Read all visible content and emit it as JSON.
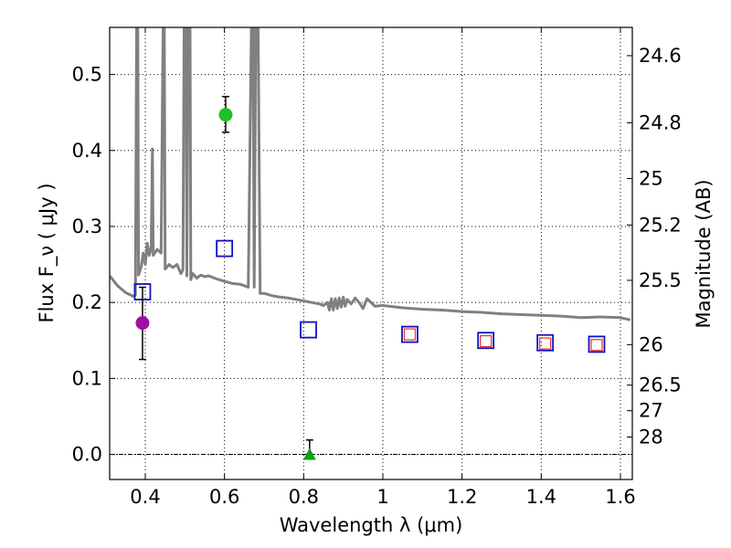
{
  "chart_data": {
    "type": "scatter",
    "title": "",
    "xlabel": "Wavelength  λ (μm)",
    "ylabel": "Flux  F_ν  ( μJy )",
    "y2label": "Magnitude (AB)",
    "xlim": [
      0.31,
      1.63
    ],
    "ylim": [
      -0.033,
      0.562
    ],
    "x_ticks": [
      {
        "value": 0.4,
        "label": "0.4"
      },
      {
        "value": 0.6,
        "label": "0.6"
      },
      {
        "value": 0.8,
        "label": "0.8"
      },
      {
        "value": 1.0,
        "label": "1"
      },
      {
        "value": 1.2,
        "label": "1.2"
      },
      {
        "value": 1.4,
        "label": "1.4"
      },
      {
        "value": 1.6,
        "label": "1.6"
      }
    ],
    "y_ticks": [
      {
        "value": 0.0,
        "label": "0.0"
      },
      {
        "value": 0.1,
        "label": "0.1"
      },
      {
        "value": 0.2,
        "label": "0.2"
      },
      {
        "value": 0.3,
        "label": "0.3"
      },
      {
        "value": 0.4,
        "label": "0.4"
      },
      {
        "value": 0.5,
        "label": "0.5"
      }
    ],
    "y2_ticks": [
      {
        "flux": 0.5248,
        "label": "24.6"
      },
      {
        "flux": 0.4365,
        "label": "24.8"
      },
      {
        "flux": 0.3631,
        "label": "25"
      },
      {
        "flux": 0.302,
        "label": "25.2"
      },
      {
        "flux": 0.2291,
        "label": "25.5"
      },
      {
        "flux": 0.1445,
        "label": "26"
      },
      {
        "flux": 0.0912,
        "label": "26.5"
      },
      {
        "flux": 0.0575,
        "label": "27"
      },
      {
        "flux": 0.0229,
        "label": "28"
      }
    ],
    "grid": true,
    "series": [
      {
        "kind": "line",
        "color": "#808080",
        "points": [
          [
            0.31,
            0.235
          ],
          [
            0.33,
            0.222
          ],
          [
            0.35,
            0.213
          ],
          [
            0.37,
            0.208
          ],
          [
            0.375,
            0.21
          ],
          [
            0.378,
            0.56
          ],
          [
            0.381,
            0.56
          ],
          [
            0.383,
            0.236
          ],
          [
            0.39,
            0.248
          ],
          [
            0.395,
            0.265
          ],
          [
            0.4,
            0.25
          ],
          [
            0.405,
            0.278
          ],
          [
            0.41,
            0.262
          ],
          [
            0.415,
            0.272
          ],
          [
            0.418,
            0.402
          ],
          [
            0.42,
            0.262
          ],
          [
            0.43,
            0.27
          ],
          [
            0.44,
            0.265
          ],
          [
            0.445,
            0.56
          ],
          [
            0.448,
            0.56
          ],
          [
            0.45,
            0.244
          ],
          [
            0.46,
            0.25
          ],
          [
            0.47,
            0.246
          ],
          [
            0.48,
            0.25
          ],
          [
            0.49,
            0.238
          ],
          [
            0.495,
            0.243
          ],
          [
            0.498,
            0.56
          ],
          [
            0.503,
            0.56
          ],
          [
            0.505,
            0.235
          ],
          [
            0.508,
            0.56
          ],
          [
            0.513,
            0.56
          ],
          [
            0.515,
            0.23
          ],
          [
            0.52,
            0.238
          ],
          [
            0.53,
            0.232
          ],
          [
            0.54,
            0.236
          ],
          [
            0.55,
            0.234
          ],
          [
            0.56,
            0.235
          ],
          [
            0.58,
            0.231
          ],
          [
            0.6,
            0.228
          ],
          [
            0.62,
            0.225
          ],
          [
            0.64,
            0.224
          ],
          [
            0.66,
            0.22
          ],
          [
            0.668,
            0.56
          ],
          [
            0.672,
            0.56
          ],
          [
            0.675,
            0.22
          ],
          [
            0.679,
            0.56
          ],
          [
            0.685,
            0.56
          ],
          [
            0.69,
            0.212
          ],
          [
            0.7,
            0.212
          ],
          [
            0.72,
            0.209
          ],
          [
            0.74,
            0.207
          ],
          [
            0.76,
            0.206
          ],
          [
            0.78,
            0.204
          ],
          [
            0.8,
            0.202
          ],
          [
            0.82,
            0.2
          ],
          [
            0.84,
            0.198
          ],
          [
            0.85,
            0.196
          ],
          [
            0.86,
            0.2
          ],
          [
            0.865,
            0.19
          ],
          [
            0.87,
            0.205
          ],
          [
            0.875,
            0.19
          ],
          [
            0.88,
            0.205
          ],
          [
            0.885,
            0.192
          ],
          [
            0.89,
            0.206
          ],
          [
            0.895,
            0.194
          ],
          [
            0.9,
            0.207
          ],
          [
            0.905,
            0.195
          ],
          [
            0.91,
            0.204
          ],
          [
            0.92,
            0.198
          ],
          [
            0.93,
            0.206
          ],
          [
            0.94,
            0.2
          ],
          [
            0.95,
            0.192
          ],
          [
            0.96,
            0.205
          ],
          [
            0.97,
            0.2
          ],
          [
            0.98,
            0.195
          ],
          [
            1.0,
            0.196
          ],
          [
            1.05,
            0.193
          ],
          [
            1.1,
            0.191
          ],
          [
            1.15,
            0.19
          ],
          [
            1.2,
            0.188
          ],
          [
            1.25,
            0.187
          ],
          [
            1.3,
            0.185
          ],
          [
            1.35,
            0.184
          ],
          [
            1.4,
            0.183
          ],
          [
            1.45,
            0.182
          ],
          [
            1.5,
            0.18
          ],
          [
            1.55,
            0.181
          ],
          [
            1.6,
            0.18
          ],
          [
            1.625,
            0.177
          ]
        ]
      },
      {
        "kind": "open-square",
        "color": "#1010c0",
        "points": [
          [
            0.393,
            0.214
          ],
          [
            0.6,
            0.271
          ],
          [
            0.812,
            0.164
          ],
          [
            1.068,
            0.158
          ],
          [
            1.26,
            0.15
          ],
          [
            1.41,
            0.147
          ],
          [
            1.54,
            0.145
          ]
        ]
      },
      {
        "kind": "small-open-square",
        "color": "#e03030",
        "points": [
          [
            1.068,
            0.158
          ],
          [
            1.26,
            0.149
          ],
          [
            1.41,
            0.146
          ],
          [
            1.54,
            0.144
          ]
        ]
      },
      {
        "kind": "circle",
        "color": "#20c020",
        "points": [
          [
            0.603,
            0.447
          ]
        ],
        "errors": [
          [
            0.424,
            0.471
          ]
        ]
      },
      {
        "kind": "circle",
        "color": "#a010a0",
        "points": [
          [
            0.393,
            0.173
          ]
        ],
        "errors": [
          [
            0.125,
            0.22
          ]
        ]
      },
      {
        "kind": "triangle",
        "color": "#10a010",
        "points": [
          [
            0.815,
            0.0
          ]
        ],
        "errors": [
          [
            0.0,
            0.019
          ]
        ]
      }
    ],
    "zero_line": 0.0
  }
}
